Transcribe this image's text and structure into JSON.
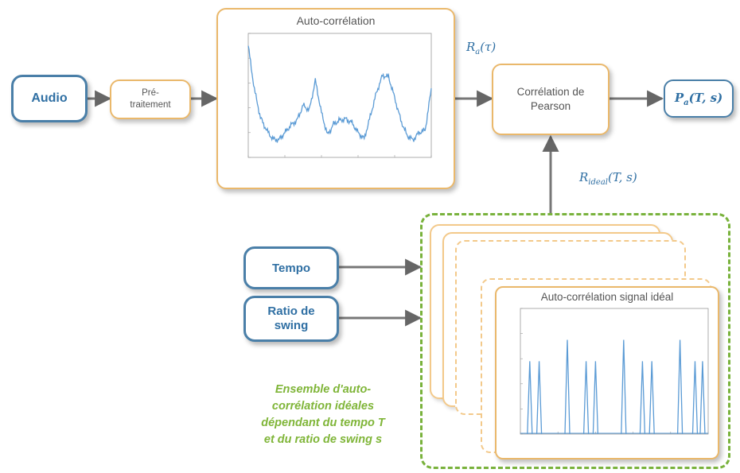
{
  "nodes": {
    "audio": "Audio",
    "pretraitement": [
      "Pré-",
      "traitement"
    ],
    "autocorr_title": "Auto-corrélation",
    "pearson": [
      "Corrélation de",
      "Pearson"
    ],
    "tempo": "Tempo",
    "ratio": [
      "Ratio de",
      "swing"
    ],
    "ideal_title": "Auto-corrélation signal idéal"
  },
  "math": {
    "ra_base": "R",
    "ra_sub": "a",
    "ra_arg": "(τ)",
    "pa_base": "P",
    "pa_sub": "a",
    "pa_arg": "(T, s)",
    "rideal_base": "R",
    "rideal_sub": "ideal",
    "rideal_arg": "(T, s)"
  },
  "annotation": [
    "Ensemble d'auto-",
    "corrélation idéales",
    "dépendant du tempo T",
    "et du ratio de swing s"
  ],
  "colors": {
    "blue": "#4a7fa8",
    "orange": "#eab86b",
    "green": "#79b23c",
    "plot_line": "#5b9bd5",
    "arrow": "#666666"
  },
  "chart_data": [
    {
      "type": "line",
      "title": "Auto-corrélation",
      "x": [
        0,
        0.05,
        0.1,
        0.2,
        0.3,
        0.4,
        0.5,
        0.6,
        0.7,
        0.8,
        0.9,
        1.0,
        1.1,
        1.2,
        1.3,
        1.4,
        1.5,
        1.6,
        1.7,
        1.8,
        1.9,
        2.0,
        2.1,
        2.2,
        2.3,
        2.4,
        2.5,
        2.6,
        2.7,
        2.8,
        2.9,
        3.0
      ],
      "y": [
        0.9,
        0.72,
        0.55,
        0.32,
        0.22,
        0.15,
        0.14,
        0.2,
        0.26,
        0.3,
        0.42,
        0.38,
        0.62,
        0.36,
        0.18,
        0.27,
        0.3,
        0.31,
        0.28,
        0.2,
        0.15,
        0.33,
        0.52,
        0.66,
        0.65,
        0.48,
        0.3,
        0.18,
        0.14,
        0.2,
        0.22,
        0.55
      ],
      "xlim": [
        0,
        3
      ],
      "ylim": [
        0,
        1
      ]
    },
    {
      "type": "line",
      "title": "Auto-corrélation signal idéal",
      "peaks": [
        {
          "x": 0.05,
          "y": 0.58
        },
        {
          "x": 0.1,
          "y": 0.58
        },
        {
          "x": 0.25,
          "y": 0.75
        },
        {
          "x": 0.35,
          "y": 0.58
        },
        {
          "x": 0.4,
          "y": 0.58
        },
        {
          "x": 0.55,
          "y": 0.75
        },
        {
          "x": 0.65,
          "y": 0.58
        },
        {
          "x": 0.7,
          "y": 0.58
        },
        {
          "x": 0.85,
          "y": 0.75
        },
        {
          "x": 0.93,
          "y": 0.58
        },
        {
          "x": 0.97,
          "y": 0.58
        }
      ],
      "xlim": [
        0,
        1
      ],
      "ylim": [
        0,
        1
      ]
    }
  ]
}
